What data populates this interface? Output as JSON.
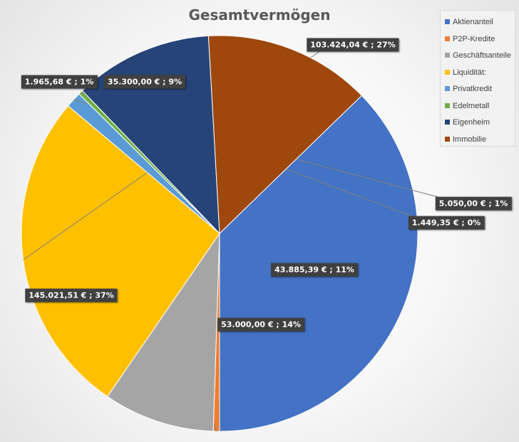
{
  "chart_data": {
    "type": "pie",
    "title": "Gesamtvermögen",
    "legend_position": "top-right",
    "categories": [
      "Aktienanteil",
      "P2P-Kredite",
      "Geschäftsanteile",
      "Liquidität:",
      "Privatkredit",
      "Edelmetall",
      "Eigenheim",
      "Immobilie"
    ],
    "values": [
      145021.51,
      1965.68,
      35300.0,
      103424.04,
      5050.0,
      1449.35,
      43885.39,
      53000.0
    ],
    "data_labels": [
      "145.021,51 € ; 37%",
      "1.965,68 € ; 1%",
      "35.300,00 € ; 9%",
      "103.424,04 € ; 27%",
      "5.050,00 € ; 1%",
      "1.449,35 € ; 0%",
      "43.885,39 € ; 11%",
      "53.000,00 € ; 14%"
    ],
    "colors": [
      "#4472c4",
      "#ed7d31",
      "#a5a5a5",
      "#ffc000",
      "#5b9bd5",
      "#70ad47",
      "#264478",
      "#9e480e"
    ]
  }
}
